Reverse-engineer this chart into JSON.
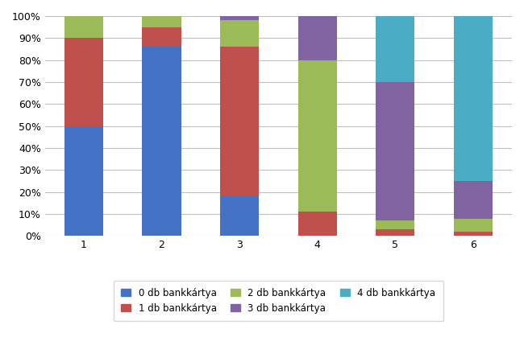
{
  "categories": [
    1,
    2,
    3,
    4,
    5,
    6
  ],
  "series": {
    "0 db bankkártya": [
      50,
      86,
      18,
      0,
      0,
      0
    ],
    "1 db bankkártya": [
      40,
      9,
      68,
      11,
      3,
      2
    ],
    "2 db bankkártya": [
      10,
      5,
      12,
      69,
      4,
      6
    ],
    "3 db bankkártya": [
      0,
      0,
      2,
      20,
      63,
      17
    ],
    "4 db bankkártya": [
      0,
      0,
      0,
      0,
      30,
      75
    ]
  },
  "colors": {
    "0 db bankkártya": "#4472C4",
    "1 db bankkártya": "#C0504D",
    "2 db bankkártya": "#9BBB59",
    "3 db bankkártya": "#8064A2",
    "4 db bankkártya": "#4BACC6"
  },
  "ylim": [
    0,
    100
  ],
  "yticks": [
    0,
    10,
    20,
    30,
    40,
    50,
    60,
    70,
    80,
    90,
    100
  ],
  "ytick_labels": [
    "0%",
    "10%",
    "20%",
    "30%",
    "40%",
    "50%",
    "60%",
    "70%",
    "80%",
    "90%",
    "100%"
  ],
  "xlabel": "",
  "ylabel": "",
  "legend_order": [
    "0 db bankkártya",
    "1 db bankkártya",
    "2 db bankkártya",
    "3 db bankkártya",
    "4 db bankkártya"
  ],
  "background_color": "#FFFFFF",
  "grid_color": "#BFBFBF",
  "figure_width": 6.5,
  "figure_height": 4.5
}
